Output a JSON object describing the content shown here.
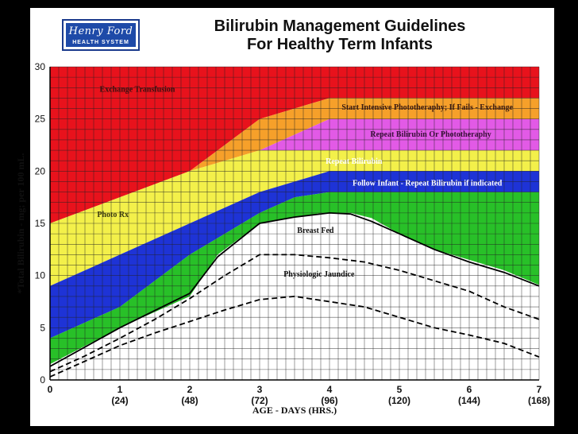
{
  "logo": {
    "script_text": "Henry Ford",
    "sub_text": "HEALTH SYSTEM"
  },
  "title": {
    "line1": "Bilirubin Management Guidelines",
    "line2": "For Healthy Term Infants"
  },
  "chart_data": {
    "type": "area",
    "xlabel": "AGE - DAYS (HRS.)",
    "ylabel": "*Total Bilirubin - mg; per 100 mL.",
    "xlim": [
      0,
      7
    ],
    "ylim": [
      0,
      30
    ],
    "grid": true,
    "x_ticks": [
      {
        "x": 0,
        "label": "0",
        "sub": ""
      },
      {
        "x": 1,
        "label": "1",
        "sub": "(24)"
      },
      {
        "x": 2,
        "label": "2",
        "sub": "(48)"
      },
      {
        "x": 3,
        "label": "3",
        "sub": "(72)"
      },
      {
        "x": 4,
        "label": "4",
        "sub": "(96)"
      },
      {
        "x": 5,
        "label": "5",
        "sub": "(120)"
      },
      {
        "x": 6,
        "label": "6",
        "sub": "(144)"
      },
      {
        "x": 7,
        "label": "7",
        "sub": "(168)"
      }
    ],
    "y_ticks": [
      0,
      5,
      10,
      15,
      20,
      25,
      30
    ],
    "zones": [
      {
        "name": "exchange",
        "color": "#e8121c",
        "upper": [
          [
            0,
            30
          ],
          [
            7,
            30
          ]
        ],
        "lower": [
          [
            0,
            15
          ],
          [
            2,
            20
          ],
          [
            3,
            25
          ],
          [
            4,
            27
          ],
          [
            7,
            27
          ]
        ]
      },
      {
        "name": "intensive",
        "color": "#f6a02a",
        "upper": [
          [
            0,
            15
          ],
          [
            2,
            20
          ],
          [
            3,
            25
          ],
          [
            4,
            27
          ],
          [
            7,
            27
          ]
        ],
        "lower": [
          [
            0,
            15
          ],
          [
            2,
            20
          ],
          [
            3,
            22
          ],
          [
            4,
            25
          ],
          [
            7,
            25
          ]
        ]
      },
      {
        "name": "repeat-or-photo",
        "color": "#e25ae6",
        "upper": [
          [
            0,
            15
          ],
          [
            2,
            20
          ],
          [
            3,
            22
          ],
          [
            4,
            25
          ],
          [
            7,
            25
          ]
        ],
        "lower": [
          [
            0,
            15
          ],
          [
            2,
            20
          ],
          [
            3,
            22
          ],
          [
            7,
            22
          ]
        ]
      },
      {
        "name": "photo",
        "color": "#f3f04a",
        "upper": [
          [
            0,
            15
          ],
          [
            2,
            20
          ],
          [
            3,
            22
          ],
          [
            7,
            22
          ]
        ],
        "lower": [
          [
            0,
            9
          ],
          [
            1,
            12
          ],
          [
            2,
            15
          ],
          [
            3,
            18
          ],
          [
            4,
            20
          ],
          [
            7,
            20
          ]
        ]
      },
      {
        "name": "repeat-bilirubin",
        "color": "#1e33d6",
        "upper": [
          [
            0,
            9
          ],
          [
            1,
            12
          ],
          [
            2,
            15
          ],
          [
            3,
            18
          ],
          [
            4,
            20
          ],
          [
            7,
            20
          ]
        ],
        "lower": [
          [
            0,
            4
          ],
          [
            1,
            7
          ],
          [
            2,
            12
          ],
          [
            3,
            16
          ],
          [
            3.5,
            17.5
          ],
          [
            4,
            18
          ],
          [
            7,
            18
          ]
        ]
      },
      {
        "name": "follow-infant",
        "color": "#28c028",
        "upper": [
          [
            0,
            4
          ],
          [
            1,
            7
          ],
          [
            2,
            12
          ],
          [
            3,
            16
          ],
          [
            3.5,
            17.5
          ],
          [
            4,
            18
          ],
          [
            7,
            18
          ]
        ],
        "lower": [
          [
            0,
            1.5
          ],
          [
            1,
            5
          ],
          [
            2,
            8
          ],
          [
            2.4,
            12
          ],
          [
            3,
            15
          ],
          [
            3.5,
            15.6
          ],
          [
            3.9,
            16
          ],
          [
            4.3,
            16
          ],
          [
            4.6,
            15.5
          ],
          [
            5,
            14
          ],
          [
            5.5,
            12.5
          ],
          [
            6,
            11.5
          ],
          [
            6.5,
            10.5
          ],
          [
            7,
            9.1
          ]
        ]
      }
    ],
    "upper_white_limit": [
      [
        0,
        1.5
      ],
      [
        1,
        5
      ],
      [
        2,
        8
      ],
      [
        2.4,
        12
      ],
      [
        3,
        15
      ],
      [
        3.5,
        15.6
      ],
      [
        3.9,
        16
      ],
      [
        4.3,
        16
      ],
      [
        4.6,
        15.5
      ],
      [
        5,
        14
      ],
      [
        5.5,
        12.5
      ],
      [
        6,
        11.5
      ],
      [
        6.5,
        10.5
      ],
      [
        7,
        9.1
      ]
    ],
    "white_region_top": 16,
    "curves": [
      {
        "name": "breast-fed",
        "dash": false,
        "points": [
          [
            0,
            1.3
          ],
          [
            1,
            5
          ],
          [
            2,
            8.3
          ],
          [
            2.4,
            11.8
          ],
          [
            3,
            15
          ],
          [
            3.5,
            15.6
          ],
          [
            4,
            16
          ],
          [
            4.3,
            15.9
          ],
          [
            4.6,
            15.2
          ],
          [
            5,
            14
          ],
          [
            5.5,
            12.5
          ],
          [
            6,
            11.3
          ],
          [
            6.5,
            10.3
          ],
          [
            7,
            9
          ]
        ]
      },
      {
        "name": "physiologic-upper",
        "dash": true,
        "points": [
          [
            0,
            0.8
          ],
          [
            0.5,
            2.3
          ],
          [
            1,
            4
          ],
          [
            1.5,
            5.8
          ],
          [
            2,
            7.8
          ],
          [
            2.5,
            10
          ],
          [
            3,
            12
          ],
          [
            3.5,
            12
          ],
          [
            4,
            11.7
          ],
          [
            4.5,
            11.3
          ],
          [
            5,
            10.5
          ],
          [
            5.5,
            9.5
          ],
          [
            6,
            8.5
          ],
          [
            6.5,
            7
          ],
          [
            7,
            5.8
          ]
        ]
      },
      {
        "name": "physiologic-lower",
        "dash": true,
        "points": [
          [
            0,
            0.3
          ],
          [
            0.5,
            1.8
          ],
          [
            1,
            3.3
          ],
          [
            1.5,
            4.5
          ],
          [
            2,
            5.6
          ],
          [
            2.5,
            6.7
          ],
          [
            3,
            7.7
          ],
          [
            3.5,
            8
          ],
          [
            4,
            7.5
          ],
          [
            4.5,
            7
          ],
          [
            5,
            6
          ],
          [
            5.5,
            5
          ],
          [
            6,
            4.3
          ],
          [
            6.5,
            3.5
          ],
          [
            7,
            2.2
          ]
        ]
      }
    ],
    "labels": [
      {
        "id": "exchange",
        "text": "Exchange Transfusion",
        "x": 1.25,
        "y": 27.6,
        "color": "#3a1010",
        "anchor": "middle"
      },
      {
        "id": "intensive",
        "text": "Start Intensive Phototheraphy; If Fails - Exchange",
        "x": 5.4,
        "y": 25.9,
        "color": "#3a1a10",
        "anchor": "middle"
      },
      {
        "id": "repeat-photo",
        "text": "Repeat Bilirubin Or Phototheraphy",
        "x": 5.45,
        "y": 23.3,
        "color": "#3a103a",
        "anchor": "middle"
      },
      {
        "id": "repeat",
        "text": "Repeat Bilirubin",
        "x": 4.35,
        "y": 20.7,
        "color": "#ffffff",
        "anchor": "middle"
      },
      {
        "id": "follow",
        "text": "Follow Infant - Repeat Bilirubin if indicated",
        "x": 5.4,
        "y": 18.6,
        "color": "#ffffff",
        "anchor": "middle"
      },
      {
        "id": "photo-rx",
        "text": "Photo Rx",
        "x": 0.9,
        "y": 15.6,
        "color": "#3a3a10",
        "anchor": "middle"
      },
      {
        "id": "breast-fed",
        "text": "Breast Fed",
        "x": 3.8,
        "y": 14.1,
        "color": "#111111",
        "anchor": "middle"
      },
      {
        "id": "physiologic",
        "text": "Physiologic Jaundice",
        "x": 3.85,
        "y": 9.9,
        "color": "#111111",
        "anchor": "middle"
      }
    ]
  }
}
